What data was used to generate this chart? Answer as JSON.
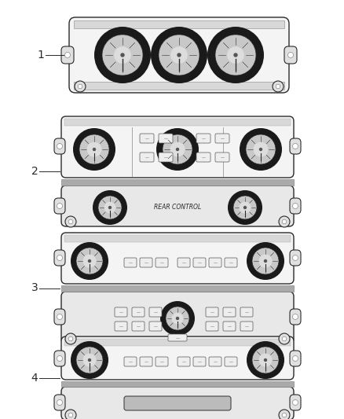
{
  "background_color": "#ffffff",
  "line_color": "#2a2a2a",
  "panel_fill": "#f4f4f4",
  "panel_fill_dark": "#d8d8d8",
  "panel_fill_mid": "#e8e8e8",
  "knob_outer_fill": "#1a1a1a",
  "knob_ring_fill": "#c8c8c8",
  "knob_center_fill": "#888888",
  "tab_fill": "#e0e0e0",
  "button_fill": "#eeeeee",
  "slot_fill": "#bbbbbb",
  "labels": [
    "1",
    "2",
    "3",
    "4"
  ],
  "rear_control_text": "REAR CONTROL",
  "lw_main": 1.0,
  "lw_thin": 0.5,
  "lw_thick": 1.5
}
